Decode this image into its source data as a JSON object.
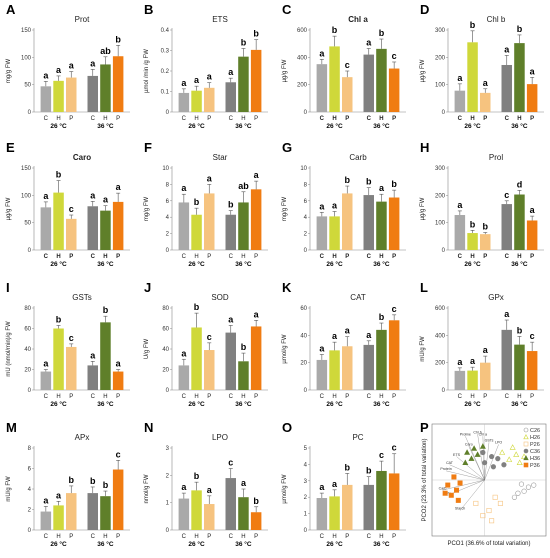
{
  "figure": {
    "colors": {
      "C26": "#a9a9a9",
      "H26": "#cfd83a",
      "P26": "#f6c37f",
      "C36": "#808080",
      "H36": "#5f7f2a",
      "P36": "#f07c12"
    },
    "group_labels": [
      "26 °C",
      "36 °C"
    ]
  },
  "chart_data": [
    {
      "id": "A",
      "type": "bar",
      "title": "Prot",
      "title_bold": false,
      "ylabel": "mg/g FW",
      "ylim": [
        0,
        150
      ],
      "yticks": [
        0,
        50,
        100,
        150
      ],
      "categories": [
        "C",
        "H",
        "P",
        "C",
        "H",
        "P"
      ],
      "cat_bold": false,
      "values": [
        47,
        57,
        63,
        66,
        87,
        102
      ],
      "errors": [
        9,
        9,
        11,
        12,
        14,
        20
      ],
      "letters": [
        "a",
        "a",
        "a",
        "a",
        "ab",
        "b"
      ]
    },
    {
      "id": "B",
      "type": "bar",
      "title": "ETS",
      "title_bold": false,
      "ylabel": "µmol /min /g FW",
      "ylim": [
        0,
        0.4
      ],
      "yticks": [
        0,
        0.1,
        0.2,
        0.3,
        0.4
      ],
      "categories": [
        "C",
        "H",
        "P",
        "C",
        "H",
        "P"
      ],
      "cat_bold": false,
      "values": [
        0.093,
        0.104,
        0.118,
        0.145,
        0.27,
        0.303
      ],
      "errors": [
        0.02,
        0.022,
        0.025,
        0.02,
        0.04,
        0.05
      ],
      "letters": [
        "a",
        "a",
        "a",
        "a",
        "b",
        "b"
      ]
    },
    {
      "id": "C",
      "type": "bar",
      "title": "Chl a",
      "title_bold": true,
      "ylabel": "µg/g FW",
      "ylim": [
        0,
        600
      ],
      "yticks": [
        0,
        200,
        400,
        600
      ],
      "categories": [
        "C",
        "H",
        "P",
        "C",
        "H",
        "P"
      ],
      "cat_bold": true,
      "values": [
        350,
        480,
        255,
        420,
        462,
        318
      ],
      "errors": [
        35,
        75,
        45,
        45,
        72,
        48
      ],
      "letters": [
        "a",
        "b",
        "c",
        "a",
        "b",
        "c"
      ]
    },
    {
      "id": "D",
      "type": "bar",
      "title": "Chl b",
      "title_bold": false,
      "ylabel": "µg/g FW",
      "ylim": [
        0,
        300
      ],
      "yticks": [
        0,
        100,
        200,
        300
      ],
      "categories": [
        "C",
        "H",
        "P",
        "C",
        "H",
        "P"
      ],
      "cat_bold": true,
      "values": [
        78,
        255,
        70,
        172,
        252,
        102
      ],
      "errors": [
        25,
        42,
        15,
        35,
        30,
        25
      ],
      "letters": [
        "a",
        "b",
        "a",
        "a",
        "b",
        "a"
      ]
    },
    {
      "id": "E",
      "type": "bar",
      "title": "Caro",
      "title_bold": true,
      "ylabel": "µg/g FW",
      "ylim": [
        0,
        150
      ],
      "yticks": [
        0,
        50,
        100,
        150
      ],
      "categories": [
        "C",
        "H",
        "P",
        "C",
        "H",
        "P"
      ],
      "cat_bold": true,
      "values": [
        78,
        105,
        57,
        80,
        72,
        88
      ],
      "errors": [
        10,
        22,
        7,
        9,
        9,
        16
      ],
      "letters": [
        "a",
        "b",
        "c",
        "a",
        "a",
        "a"
      ]
    },
    {
      "id": "F",
      "type": "bar",
      "title": "Star",
      "title_bold": false,
      "ylabel": "mg/g FW",
      "ylim": [
        0,
        10
      ],
      "yticks": [
        0,
        2,
        4,
        6,
        8,
        10
      ],
      "categories": [
        "C",
        "H",
        "P",
        "C",
        "H",
        "P"
      ],
      "cat_bold": false,
      "values": [
        5.8,
        4.3,
        6.9,
        4.3,
        5.8,
        7.4
      ],
      "errors": [
        1.0,
        0.8,
        1.1,
        0.5,
        1.3,
        1.0
      ],
      "letters": [
        "a",
        "b",
        "a",
        "b",
        "ab",
        "a"
      ]
    },
    {
      "id": "G",
      "type": "bar",
      "title": "Carb",
      "title_bold": false,
      "ylabel": "mg/g FW",
      "ylim": [
        0,
        10
      ],
      "yticks": [
        0,
        2,
        4,
        6,
        8,
        10
      ],
      "categories": [
        "C",
        "H",
        "P",
        "C",
        "H",
        "P"
      ],
      "cat_bold": true,
      "values": [
        4.1,
        4.1,
        6.9,
        6.7,
        5.9,
        6.4
      ],
      "errors": [
        0.5,
        0.6,
        0.9,
        0.9,
        0.9,
        0.9
      ],
      "letters": [
        "a",
        "a",
        "b",
        "b",
        "a",
        "b"
      ]
    },
    {
      "id": "H",
      "type": "bar",
      "title": "Prol",
      "title_bold": false,
      "ylabel": "µg/g FW",
      "ylim": [
        0,
        300
      ],
      "yticks": [
        0,
        100,
        200,
        300
      ],
      "categories": [
        "C",
        "H",
        "P",
        "C",
        "H",
        "P"
      ],
      "cat_bold": true,
      "values": [
        128,
        62,
        58,
        168,
        203,
        108
      ],
      "errors": [
        15,
        10,
        6,
        12,
        15,
        16
      ],
      "letters": [
        "a",
        "b",
        "b",
        "c",
        "d",
        "a"
      ]
    },
    {
      "id": "I",
      "type": "bar",
      "title": "GSTs",
      "title_bold": false,
      "ylabel": "mU (nmol/min)/g FW",
      "ylim": [
        0,
        80
      ],
      "yticks": [
        0,
        20,
        40,
        60,
        80
      ],
      "categories": [
        "C",
        "H",
        "P",
        "C",
        "H",
        "P"
      ],
      "cat_bold": false,
      "values": [
        18,
        60,
        42,
        24,
        66,
        18
      ],
      "errors": [
        2,
        3,
        3,
        4,
        6,
        2
      ],
      "letters": [
        "a",
        "b",
        "c",
        "a",
        "b",
        "a"
      ]
    },
    {
      "id": "J",
      "type": "bar",
      "title": "SOD",
      "title_bold": false,
      "ylabel": "U/g FW",
      "ylim": [
        0,
        80
      ],
      "yticks": [
        0,
        20,
        40,
        60,
        80
      ],
      "categories": [
        "C",
        "H",
        "P",
        "C",
        "H",
        "P"
      ],
      "cat_bold": false,
      "values": [
        24,
        61,
        39,
        56,
        28,
        62
      ],
      "errors": [
        6,
        14,
        7,
        7,
        8,
        6
      ],
      "letters": [
        "a",
        "b",
        "c",
        "a",
        "b",
        "a"
      ]
    },
    {
      "id": "K",
      "type": "bar",
      "title": "CAT",
      "title_bold": false,
      "ylabel": "µmol/g FW",
      "ylim": [
        0,
        60
      ],
      "yticks": [
        0,
        20,
        40,
        60
      ],
      "categories": [
        "C",
        "H",
        "P",
        "C",
        "H",
        "P"
      ],
      "cat_bold": false,
      "values": [
        22,
        29,
        32,
        33,
        44,
        51
      ],
      "errors": [
        4,
        6,
        7,
        3,
        5,
        4
      ],
      "letters": [
        "a",
        "a",
        "a",
        "a",
        "b",
        "c"
      ]
    },
    {
      "id": "L",
      "type": "bar",
      "title": "GPx",
      "title_bold": false,
      "ylabel": "mU/g FW",
      "ylim": [
        0,
        600
      ],
      "yticks": [
        0,
        200,
        400,
        600
      ],
      "categories": [
        "C",
        "H",
        "P",
        "C",
        "H",
        "P"
      ],
      "cat_bold": false,
      "values": [
        140,
        142,
        200,
        440,
        332,
        285
      ],
      "errors": [
        22,
        25,
        48,
        72,
        60,
        65
      ],
      "letters": [
        "a",
        "a",
        "a",
        "a",
        "b",
        "c"
      ]
    },
    {
      "id": "M",
      "type": "bar",
      "title": "APx",
      "title_bold": false,
      "ylabel": "mU/g FW",
      "ylim": [
        0,
        8
      ],
      "yticks": [
        0,
        2,
        4,
        6,
        8
      ],
      "categories": [
        "C",
        "H",
        "P",
        "C",
        "H",
        "P"
      ],
      "cat_bold": false,
      "values": [
        1.8,
        2.4,
        3.6,
        3.6,
        3.3,
        5.9
      ],
      "errors": [
        0.5,
        0.4,
        0.7,
        0.6,
        0.5,
        0.9
      ],
      "letters": [
        "a",
        "a",
        "b",
        "b",
        "b",
        "c"
      ]
    },
    {
      "id": "N",
      "type": "bar",
      "title": "LPO",
      "title_bold": false,
      "ylabel": "nmol/g FW",
      "ylim": [
        0,
        3
      ],
      "yticks": [
        0,
        1,
        2,
        3
      ],
      "categories": [
        "C",
        "H",
        "P",
        "C",
        "H",
        "P"
      ],
      "cat_bold": false,
      "values": [
        1.15,
        1.45,
        0.95,
        1.9,
        1.2,
        0.65
      ],
      "errors": [
        0.2,
        0.3,
        0.3,
        0.35,
        0.3,
        0.2
      ],
      "letters": [
        "a",
        "b",
        "a",
        "c",
        "a",
        "b"
      ]
    },
    {
      "id": "O",
      "type": "bar",
      "title": "PC",
      "title_bold": false,
      "ylabel": "µmol/g FW",
      "ylim": [
        0,
        5
      ],
      "yticks": [
        0,
        1,
        2,
        3,
        4,
        5
      ],
      "categories": [
        "C",
        "H",
        "P",
        "C",
        "H",
        "P"
      ],
      "cat_bold": false,
      "values": [
        1.95,
        2.05,
        2.75,
        2.75,
        3.6,
        3.45
      ],
      "errors": [
        0.3,
        0.4,
        0.7,
        0.5,
        0.6,
        1.2
      ],
      "letters": [
        "a",
        "a",
        "b",
        "b",
        "c",
        "c"
      ]
    },
    {
      "id": "P",
      "type": "scatter",
      "title": "",
      "xlabel": "PCO1 (36.6% of total variation)",
      "ylabel": "PCO2 (23.3% of total variation)",
      "legend": [
        "C26",
        "H26",
        "P26",
        "C36",
        "H36",
        "P36"
      ],
      "vectors": [
        "Proline",
        "Chl b",
        "Chl a",
        "GSTs",
        "LPO",
        "Caro",
        "ETS",
        "CAT",
        "Protein",
        "Carb",
        "APx",
        "Starch"
      ],
      "series": [
        {
          "name": "C26",
          "marker": "circle-open",
          "points": [
            [
              0.48,
              0.22
            ],
            [
              0.55,
              0.24
            ],
            [
              0.52,
              0.31
            ],
            [
              0.6,
              0.28
            ],
            [
              0.66,
              0.3
            ],
            [
              0.44,
              0.18
            ]
          ]
        },
        {
          "name": "H26",
          "marker": "triangle-open",
          "points": [
            [
              0.3,
              0.62
            ],
            [
              0.38,
              0.55
            ],
            [
              0.46,
              0.6
            ],
            [
              0.55,
              0.58
            ],
            [
              0.42,
              0.67
            ],
            [
              0.5,
              0.52
            ]
          ]
        },
        {
          "name": "P26",
          "marker": "square-open",
          "points": [
            [
              0.0,
              0.12
            ],
            [
              0.08,
              0.0
            ],
            [
              0.15,
              0.05
            ],
            [
              0.22,
              0.18
            ],
            [
              0.28,
              0.12
            ],
            [
              0.18,
              -0.05
            ]
          ]
        },
        {
          "name": "C36",
          "marker": "circle",
          "points": [
            [
              0.1,
              0.52
            ],
            [
              0.18,
              0.58
            ],
            [
              0.25,
              0.56
            ],
            [
              0.08,
              0.62
            ],
            [
              0.2,
              0.48
            ],
            [
              0.32,
              0.5
            ]
          ]
        },
        {
          "name": "H36",
          "marker": "triangle",
          "points": [
            [
              -0.12,
              0.52
            ],
            [
              -0.05,
              0.56
            ],
            [
              -0.1,
              0.62
            ],
            [
              0.02,
              0.6
            ],
            [
              0.08,
              0.68
            ],
            [
              -0.02,
              0.66
            ]
          ]
        },
        {
          "name": "P36",
          "marker": "square",
          "points": [
            [
              -0.32,
              0.3
            ],
            [
              -0.28,
              0.2
            ],
            [
              -0.22,
              0.25
            ],
            [
              -0.18,
              0.32
            ],
            [
              -0.25,
              0.38
            ],
            [
              -0.35,
              0.22
            ],
            [
              -0.2,
              0.15
            ]
          ]
        }
      ]
    }
  ]
}
